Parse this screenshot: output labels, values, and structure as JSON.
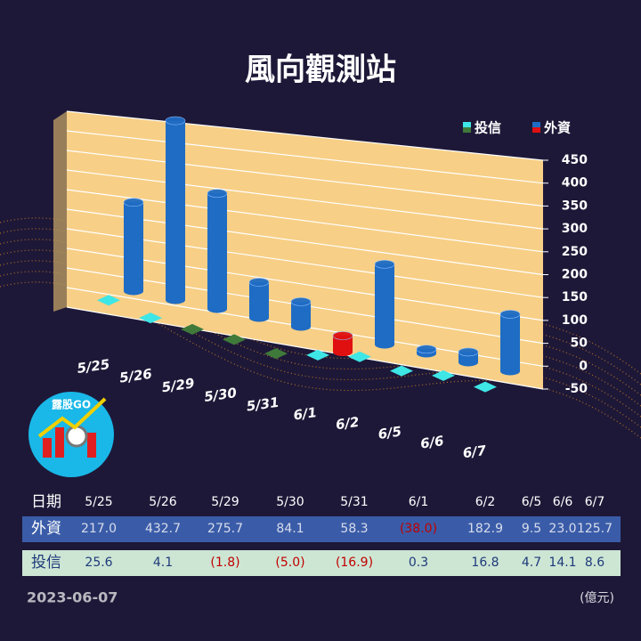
{
  "chart_data": {
    "type": "bar3d",
    "title": "風向觀測站",
    "categories": [
      "5/25",
      "5/26",
      "5/29",
      "5/30",
      "5/31",
      "6/1",
      "6/2",
      "6/5",
      "6/6",
      "6/7"
    ],
    "series": [
      {
        "name": "投信",
        "color": "#3ee6e6",
        "negative_color": "#3f7a3a",
        "values": [
          25.6,
          4.1,
          -1.8,
          -5.0,
          -16.9,
          0.3,
          16.8,
          4.7,
          14.1,
          8.6
        ],
        "value_labels": [
          "25.6",
          "4.1",
          "(1.8)",
          "(5.0)",
          "(16.9)",
          "0.3",
          "16.8",
          "4.7",
          "14.1",
          "8.6"
        ]
      },
      {
        "name": "外資",
        "color": "#1f6cc4",
        "negative_color": "#e01010",
        "values": [
          217.0,
          432.7,
          275.7,
          84.1,
          58.3,
          -38.0,
          182.9,
          9.5,
          23.0,
          125.7
        ],
        "value_labels": [
          "217.0",
          "432.7",
          "275.7",
          "84.1",
          "58.3",
          "(38.0)",
          "182.9",
          "9.5",
          "23.0",
          "125.7"
        ]
      }
    ],
    "ylim": [
      -50,
      450
    ],
    "yticks": [
      -50,
      0,
      50,
      100,
      150,
      200,
      250,
      300,
      350,
      400,
      450
    ],
    "grid": true,
    "legend": "top-right"
  },
  "table": {
    "header": "日期"
  },
  "footer": {
    "date": "2023-06-07",
    "unit": "(億元)"
  },
  "logo": {
    "text": "露股GO"
  }
}
